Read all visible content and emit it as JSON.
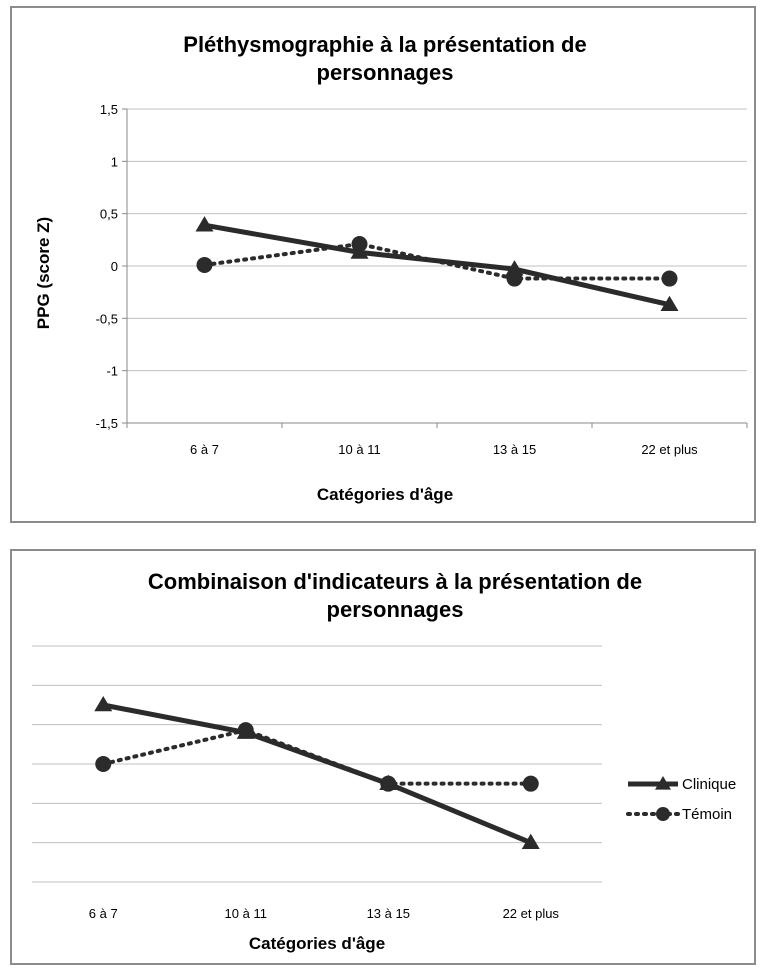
{
  "colors": {
    "series": "#2b2b2b",
    "grid": "#c0c0c0",
    "axis": "#8a8a8a"
  },
  "chart_data": [
    {
      "type": "line",
      "title_lines": [
        "Pléthysmographie à la présentation de",
        "personnages"
      ],
      "xlabel": "Catégories d'âge",
      "ylabel": "PPG (score Z)",
      "categories": [
        "6 à 7",
        "10 à 11",
        "13 à 15",
        "22 et plus"
      ],
      "ylim": [
        -1.5,
        1.5
      ],
      "yticks": [
        "1,5",
        "1",
        "0,5",
        "0",
        "-0,5",
        "-1",
        "-1,5"
      ],
      "ytick_values": [
        1.5,
        1,
        0.5,
        0,
        -0.5,
        -1,
        -1.5
      ],
      "grid": true,
      "legend": "none",
      "series": [
        {
          "name": "Clinique",
          "values": [
            0.39,
            0.13,
            -0.03,
            -0.37
          ],
          "line": "solid",
          "marker": "triangle"
        },
        {
          "name": "Témoin",
          "values": [
            0.01,
            0.21,
            -0.12,
            -0.12
          ],
          "line": "dotted",
          "marker": "circle"
        }
      ]
    },
    {
      "type": "line",
      "title_lines": [
        "Combinaison d'indicateurs à la présentation de",
        "personnages"
      ],
      "xlabel": "Catégories d'âge",
      "ylabel": "",
      "categories": [
        "6 à 7",
        "10 à 11",
        "13 à 15",
        "22 et plus"
      ],
      "ylim": [
        -1.5,
        1.5
      ],
      "grid": true,
      "legend": "right",
      "series": [
        {
          "name": "Clinique",
          "values": [
            0.75,
            0.4,
            -0.25,
            -1.0
          ],
          "line": "solid",
          "marker": "triangle"
        },
        {
          "name": "Témoin",
          "values": [
            0.0,
            0.43,
            -0.25,
            -0.25
          ],
          "line": "dotted",
          "marker": "circle"
        }
      ]
    }
  ]
}
